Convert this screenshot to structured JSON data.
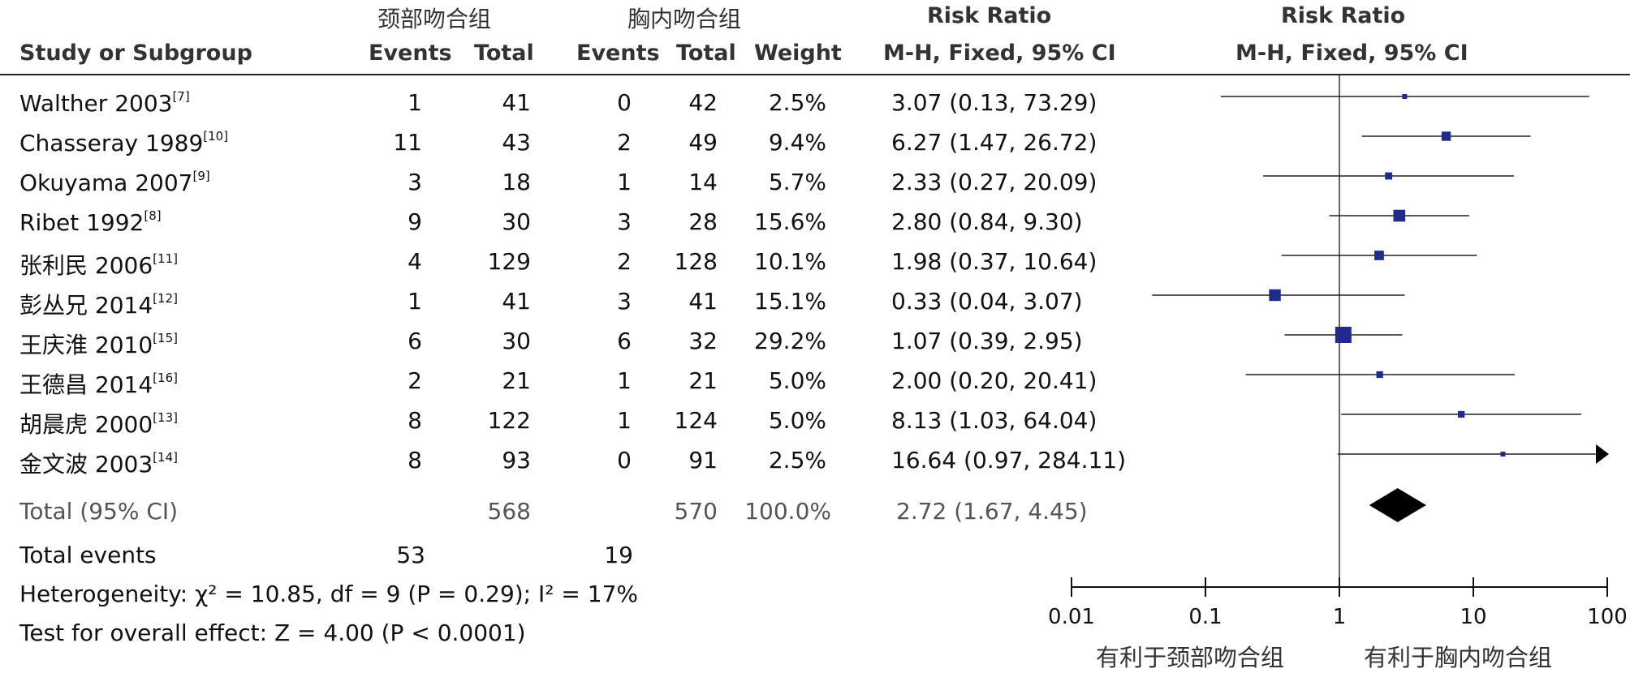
{
  "header": {
    "group1_label": "颈部吻合组",
    "group2_label": "胸内吻合组",
    "rr_label_table": "Risk Ratio",
    "rr_label_plot": "Risk Ratio",
    "study_col": "Study or Subgroup",
    "events_col1": "Events",
    "total_col1": "Total",
    "events_col2": "Events",
    "total_col2": "Total",
    "weight_col": "Weight",
    "method_table": "M-H, Fixed, 95% CI",
    "method_plot": "M-H, Fixed, 95% CI"
  },
  "studies": [
    {
      "name": "Walther 2003",
      "ref": "[7]",
      "e1": "1",
      "t1": "41",
      "e2": "0",
      "t2": "42",
      "weight": "2.5%",
      "ci": "3.07 (0.13, 73.29)"
    },
    {
      "name": "Chasseray 1989",
      "ref": "[10]",
      "e1": "11",
      "t1": "43",
      "e2": "2",
      "t2": "49",
      "weight": "9.4%",
      "ci": "6.27 (1.47, 26.72)"
    },
    {
      "name": "Okuyama 2007",
      "ref": "[9]",
      "e1": "3",
      "t1": "18",
      "e2": "1",
      "t2": "14",
      "weight": "5.7%",
      "ci": "2.33 (0.27, 20.09)"
    },
    {
      "name": "Ribet 1992",
      "ref": "[8]",
      "e1": "9",
      "t1": "30",
      "e2": "3",
      "t2": "28",
      "weight": "15.6%",
      "ci": "2.80 (0.84, 9.30)"
    },
    {
      "name": "张利民 2006",
      "ref": "[11]",
      "e1": "4",
      "t1": "129",
      "e2": "2",
      "t2": "128",
      "weight": "10.1%",
      "ci": "1.98 (0.37, 10.64)"
    },
    {
      "name": "彭丛兄 2014",
      "ref": "[12]",
      "e1": "1",
      "t1": "41",
      "e2": "3",
      "t2": "41",
      "weight": "15.1%",
      "ci": "0.33 (0.04, 3.07)"
    },
    {
      "name": "王庆淮 2010",
      "ref": "[15]",
      "e1": "6",
      "t1": "30",
      "e2": "6",
      "t2": "32",
      "weight": "29.2%",
      "ci": "1.07 (0.39, 2.95)"
    },
    {
      "name": "王德昌 2014",
      "ref": "[16]",
      "e1": "2",
      "t1": "21",
      "e2": "1",
      "t2": "21",
      "weight": "5.0%",
      "ci": "2.00 (0.20, 20.41)"
    },
    {
      "name": "胡晨虎 2000",
      "ref": "[13]",
      "e1": "8",
      "t1": "122",
      "e2": "1",
      "t2": "124",
      "weight": "5.0%",
      "ci": "8.13 (1.03, 64.04)"
    },
    {
      "name": "金文波 2003",
      "ref": "[14]",
      "e1": "8",
      "t1": "93",
      "e2": "0",
      "t2": "91",
      "weight": "2.5%",
      "ci": "16.64 (0.97, 284.11)"
    }
  ],
  "total": {
    "label": "Total (95% CI)",
    "t1": "568",
    "t2": "570",
    "weight": "100.0%",
    "ci": "2.72 (1.67, 4.45)"
  },
  "total_events": {
    "label": "Total events",
    "e1": "53",
    "e2": "19"
  },
  "heterogeneity": "Heterogeneity: χ² = 10.85, df = 9 (P = 0.29); I² = 17%",
  "overall_effect": "Test for overall effect: Z = 4.00 (P < 0.0001)",
  "axis": {
    "tick_labels": [
      "0.01",
      "0.1",
      "1",
      "10",
      "100"
    ],
    "favours_left": "有利于颈部吻合组",
    "favours_right": "有利于胸内吻合组"
  },
  "colors": {
    "marker": "#1f2a8c",
    "line": "#222222",
    "diamond": "#000000"
  },
  "chart_data": {
    "type": "forest",
    "scale": "log",
    "xlim": [
      0.01,
      100
    ],
    "ticks": [
      0.01,
      0.1,
      1,
      10,
      100
    ],
    "reference_line": 1,
    "studies": [
      {
        "rr": 3.07,
        "lo": 0.13,
        "hi": 73.29,
        "weight": 2.5
      },
      {
        "rr": 6.27,
        "lo": 1.47,
        "hi": 26.72,
        "weight": 9.4
      },
      {
        "rr": 2.33,
        "lo": 0.27,
        "hi": 20.09,
        "weight": 5.7
      },
      {
        "rr": 2.8,
        "lo": 0.84,
        "hi": 9.3,
        "weight": 15.6
      },
      {
        "rr": 1.98,
        "lo": 0.37,
        "hi": 10.64,
        "weight": 10.1
      },
      {
        "rr": 0.33,
        "lo": 0.04,
        "hi": 3.07,
        "weight": 15.1
      },
      {
        "rr": 1.07,
        "lo": 0.39,
        "hi": 2.95,
        "weight": 29.2
      },
      {
        "rr": 2.0,
        "lo": 0.2,
        "hi": 20.41,
        "weight": 5.0
      },
      {
        "rr": 8.13,
        "lo": 1.03,
        "hi": 64.04,
        "weight": 5.0
      },
      {
        "rr": 16.64,
        "lo": 0.97,
        "hi": 284.11,
        "weight": 2.5
      }
    ],
    "pooled": {
      "rr": 2.72,
      "lo": 1.67,
      "hi": 4.45
    }
  }
}
